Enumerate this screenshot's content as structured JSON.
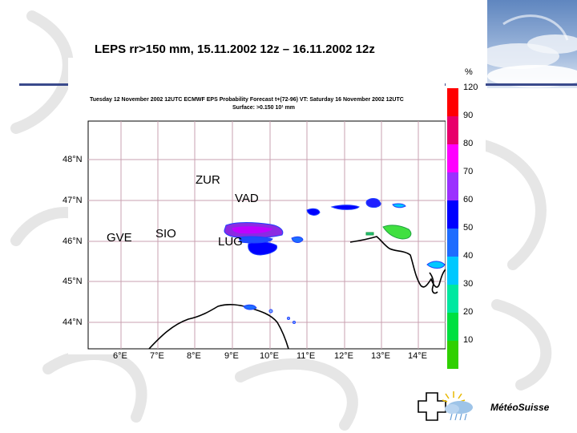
{
  "slide": {
    "title": "LEPS rr>150 mm, 15.11.2002 12z – 16.11.2002 12z"
  },
  "map": {
    "header_line1": "Tuesday 12 November 2002 12UTC ECMWF  EPS Probability Forecast t+(72-96) VT: Saturday 16 November 2002 12UTC",
    "header_line2": "Surface:  >0.150 10¹ mm",
    "latitudes": [
      "48°N",
      "47°N",
      "46°N",
      "45°N",
      "44°N"
    ],
    "longitudes": [
      "6°E",
      "7°E",
      "8°E",
      "9°E",
      "10°E",
      "11°E",
      "12°E",
      "13°E",
      "14°E"
    ],
    "cities": {
      "zur": "ZUR",
      "vad": "VAD",
      "gve": "GVE",
      "sio": "SIO",
      "lug": "LUG"
    }
  },
  "legend": {
    "unit": "%",
    "levels": [
      "120",
      "90",
      "80",
      "70",
      "60",
      "50",
      "40",
      "30",
      "20",
      "10"
    ],
    "colors": [
      "#ff0000",
      "#e8006a",
      "#ff00ff",
      "#9b30ff",
      "#0000ff",
      "#1e6cff",
      "#00c8ff",
      "#00e8a0",
      "#00e040",
      "#30d000"
    ]
  },
  "logo": {
    "text": "MétéoSuisse"
  }
}
